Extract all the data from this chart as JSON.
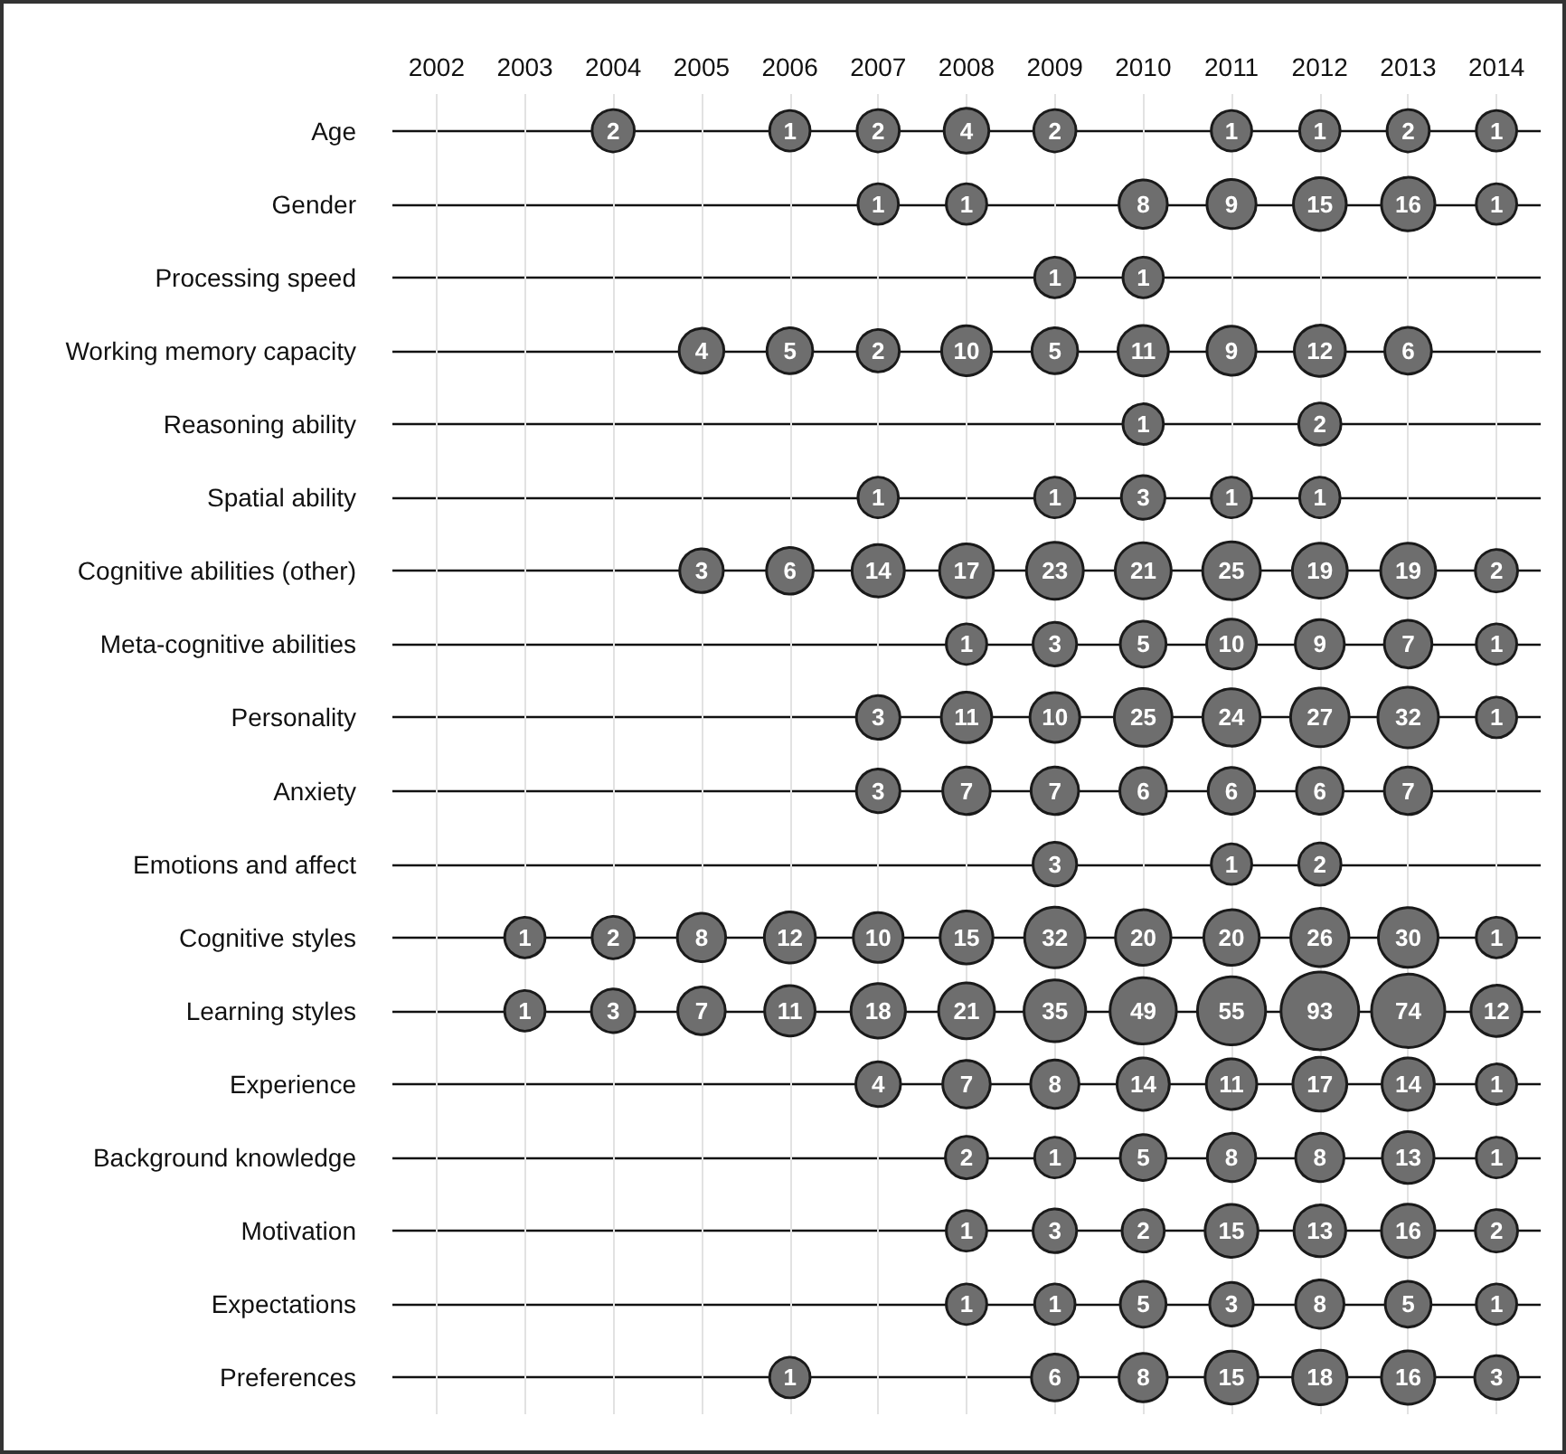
{
  "chart_data": {
    "type": "heatmap",
    "categories": [
      "2002",
      "2003",
      "2004",
      "2005",
      "2006",
      "2007",
      "2008",
      "2009",
      "2010",
      "2011",
      "2012",
      "2013",
      "2014"
    ],
    "y_categories": [
      "Age",
      "Gender",
      "Processing speed",
      "Working memory capacity",
      "Reasoning ability",
      "Spatial ability",
      "Cognitive abilities (other)",
      "Meta-cognitive abilities",
      "Personality",
      "Anxiety",
      "Emotions and affect",
      "Cognitive styles",
      "Learning styles",
      "Experience",
      "Background knowledge",
      "Motivation",
      "Expectations",
      "Preferences"
    ],
    "cells": [
      [
        null,
        null,
        2,
        null,
        1,
        2,
        4,
        2,
        null,
        1,
        1,
        2,
        1
      ],
      [
        null,
        null,
        null,
        null,
        null,
        1,
        1,
        null,
        8,
        9,
        15,
        16,
        1
      ],
      [
        null,
        null,
        null,
        null,
        null,
        null,
        null,
        1,
        1,
        null,
        null,
        null,
        null
      ],
      [
        null,
        null,
        null,
        4,
        5,
        2,
        10,
        5,
        11,
        9,
        12,
        6,
        null
      ],
      [
        null,
        null,
        null,
        null,
        null,
        null,
        null,
        null,
        1,
        null,
        2,
        null,
        null
      ],
      [
        null,
        null,
        null,
        null,
        null,
        1,
        null,
        1,
        3,
        1,
        1,
        null,
        null
      ],
      [
        null,
        null,
        null,
        3,
        6,
        14,
        17,
        23,
        21,
        25,
        19,
        19,
        2
      ],
      [
        null,
        null,
        null,
        null,
        null,
        null,
        1,
        3,
        5,
        10,
        9,
        7,
        1
      ],
      [
        null,
        null,
        null,
        null,
        null,
        3,
        11,
        10,
        25,
        24,
        27,
        32,
        1
      ],
      [
        null,
        null,
        null,
        null,
        null,
        3,
        7,
        7,
        6,
        6,
        6,
        7,
        null
      ],
      [
        null,
        null,
        null,
        null,
        null,
        null,
        null,
        3,
        null,
        1,
        2,
        null,
        null
      ],
      [
        null,
        1,
        2,
        8,
        12,
        10,
        15,
        32,
        20,
        20,
        26,
        30,
        1
      ],
      [
        null,
        1,
        3,
        7,
        11,
        18,
        21,
        35,
        49,
        55,
        93,
        74,
        12
      ],
      [
        null,
        null,
        null,
        null,
        null,
        4,
        7,
        8,
        14,
        11,
        17,
        14,
        1
      ],
      [
        null,
        null,
        null,
        null,
        null,
        null,
        2,
        1,
        5,
        8,
        8,
        13,
        1
      ],
      [
        null,
        null,
        null,
        null,
        null,
        null,
        1,
        3,
        2,
        15,
        13,
        16,
        2
      ],
      [
        null,
        null,
        null,
        null,
        null,
        null,
        1,
        1,
        5,
        3,
        8,
        5,
        1
      ],
      [
        null,
        null,
        null,
        null,
        1,
        null,
        null,
        6,
        8,
        15,
        18,
        16,
        3
      ]
    ],
    "color": "#6e6e6e",
    "data_labels": true,
    "grid": true
  }
}
